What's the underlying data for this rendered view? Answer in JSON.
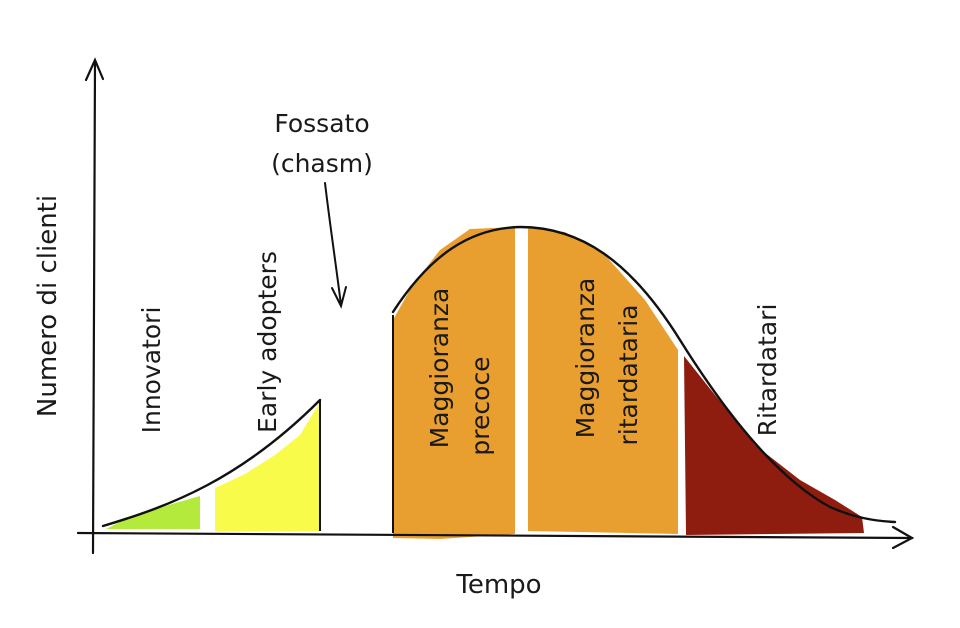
{
  "diagram": {
    "x_axis_title": "Tempo",
    "y_axis_title": "Numero di clienti",
    "chasm_label_line1": "Fossato",
    "chasm_label_line2": "(chasm)",
    "segments": [
      {
        "key": "innovators",
        "label": "Innovatori",
        "color": "#b4ea3c"
      },
      {
        "key": "early",
        "label": "Early adopters",
        "color": "#f9fb4b"
      },
      {
        "key": "early_majority",
        "label_line1": "Maggioranza",
        "label_line2": "precoce",
        "color": "#e99f2f"
      },
      {
        "key": "late_majority",
        "label_line1": "Maggioranza",
        "label_line2": "ritardataria",
        "color": "#e99f2f"
      },
      {
        "key": "laggards",
        "label": "Ritardatari",
        "color": "#8f1d0f"
      }
    ]
  }
}
